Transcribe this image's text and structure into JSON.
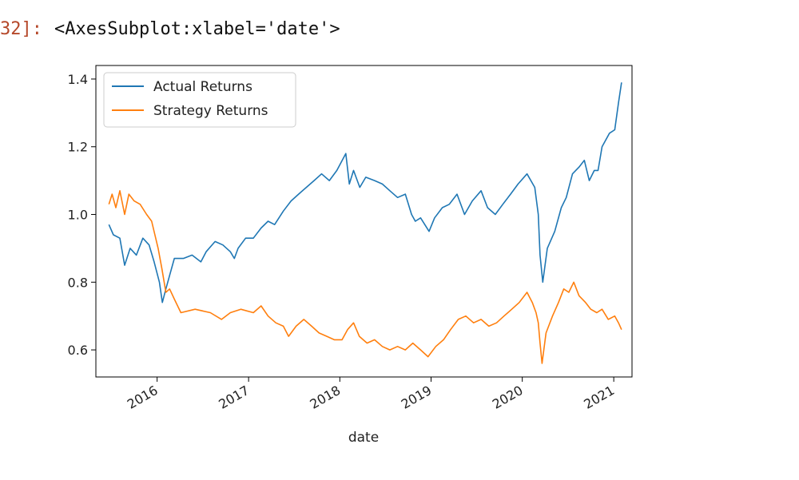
{
  "cell": {
    "prompt": "32]:",
    "output_repr": "<AxesSubplot:xlabel='date'>"
  },
  "chart_data": {
    "type": "line",
    "title": "",
    "xlabel": "date",
    "ylabel": "",
    "xlim": [
      "2015-05-01",
      "2021-03-15"
    ],
    "ylim": [
      0.52,
      1.44
    ],
    "x_ticks": [
      "2016-01-01",
      "2017-01-01",
      "2018-01-01",
      "2019-01-01",
      "2020-01-01",
      "2021-01-01"
    ],
    "x_tick_labels": [
      "2016",
      "2017",
      "2018",
      "2019",
      "2020",
      "2021"
    ],
    "y_ticks": [
      0.6,
      0.8,
      1.0,
      1.2,
      1.4
    ],
    "y_tick_labels": [
      "0.6",
      "0.8",
      "1.0",
      "1.2",
      "1.4"
    ],
    "grid": false,
    "legend_position": "upper-left",
    "series": [
      {
        "name": "Actual Returns",
        "color": "#1f77b4",
        "points": [
          [
            "2015-06-22",
            0.97
          ],
          [
            "2015-07-10",
            0.94
          ],
          [
            "2015-08-05",
            0.93
          ],
          [
            "2015-08-24",
            0.85
          ],
          [
            "2015-09-15",
            0.9
          ],
          [
            "2015-10-10",
            0.88
          ],
          [
            "2015-11-05",
            0.93
          ],
          [
            "2015-11-30",
            0.91
          ],
          [
            "2015-12-20",
            0.86
          ],
          [
            "2016-01-10",
            0.8
          ],
          [
            "2016-01-22",
            0.74
          ],
          [
            "2016-02-05",
            0.78
          ],
          [
            "2016-02-20",
            0.82
          ],
          [
            "2016-03-10",
            0.87
          ],
          [
            "2016-04-15",
            0.87
          ],
          [
            "2016-05-20",
            0.88
          ],
          [
            "2016-06-24",
            0.86
          ],
          [
            "2016-07-15",
            0.89
          ],
          [
            "2016-08-20",
            0.92
          ],
          [
            "2016-09-20",
            0.91
          ],
          [
            "2016-10-20",
            0.89
          ],
          [
            "2016-11-05",
            0.87
          ],
          [
            "2016-11-20",
            0.9
          ],
          [
            "2016-12-20",
            0.93
          ],
          [
            "2017-01-20",
            0.93
          ],
          [
            "2017-02-20",
            0.96
          ],
          [
            "2017-03-20",
            0.98
          ],
          [
            "2017-04-15",
            0.97
          ],
          [
            "2017-05-20",
            1.01
          ],
          [
            "2017-06-20",
            1.04
          ],
          [
            "2017-07-20",
            1.06
          ],
          [
            "2017-08-20",
            1.08
          ],
          [
            "2017-09-20",
            1.1
          ],
          [
            "2017-10-20",
            1.12
          ],
          [
            "2017-11-20",
            1.1
          ],
          [
            "2017-12-20",
            1.13
          ],
          [
            "2018-01-25",
            1.18
          ],
          [
            "2018-02-08",
            1.09
          ],
          [
            "2018-02-25",
            1.13
          ],
          [
            "2018-03-22",
            1.08
          ],
          [
            "2018-04-15",
            1.11
          ],
          [
            "2018-05-20",
            1.1
          ],
          [
            "2018-06-20",
            1.09
          ],
          [
            "2018-07-20",
            1.07
          ],
          [
            "2018-08-20",
            1.05
          ],
          [
            "2018-09-20",
            1.06
          ],
          [
            "2018-10-15",
            1.0
          ],
          [
            "2018-10-30",
            0.98
          ],
          [
            "2018-11-20",
            0.99
          ],
          [
            "2018-12-24",
            0.95
          ],
          [
            "2019-01-15",
            0.99
          ],
          [
            "2019-02-15",
            1.02
          ],
          [
            "2019-03-15",
            1.03
          ],
          [
            "2019-04-15",
            1.06
          ],
          [
            "2019-05-15",
            1.0
          ],
          [
            "2019-06-15",
            1.04
          ],
          [
            "2019-07-20",
            1.07
          ],
          [
            "2019-08-15",
            1.02
          ],
          [
            "2019-09-15",
            1.0
          ],
          [
            "2019-10-15",
            1.03
          ],
          [
            "2019-11-15",
            1.06
          ],
          [
            "2019-12-15",
            1.09
          ],
          [
            "2020-01-20",
            1.12
          ],
          [
            "2020-02-20",
            1.08
          ],
          [
            "2020-03-05",
            1.0
          ],
          [
            "2020-03-12",
            0.88
          ],
          [
            "2020-03-23",
            0.8
          ],
          [
            "2020-04-10",
            0.9
          ],
          [
            "2020-05-10",
            0.95
          ],
          [
            "2020-06-05",
            1.02
          ],
          [
            "2020-06-25",
            1.05
          ],
          [
            "2020-07-20",
            1.12
          ],
          [
            "2020-08-15",
            1.14
          ],
          [
            "2020-09-05",
            1.16
          ],
          [
            "2020-09-25",
            1.1
          ],
          [
            "2020-10-15",
            1.13
          ],
          [
            "2020-10-30",
            1.13
          ],
          [
            "2020-11-15",
            1.2
          ],
          [
            "2020-12-15",
            1.24
          ],
          [
            "2021-01-05",
            1.25
          ],
          [
            "2021-01-20",
            1.33
          ],
          [
            "2021-02-01",
            1.39
          ]
        ]
      },
      {
        "name": "Strategy Returns",
        "color": "#ff7f0e",
        "points": [
          [
            "2015-06-22",
            1.03
          ],
          [
            "2015-07-05",
            1.06
          ],
          [
            "2015-07-20",
            1.02
          ],
          [
            "2015-08-05",
            1.07
          ],
          [
            "2015-08-24",
            1.0
          ],
          [
            "2015-09-10",
            1.06
          ],
          [
            "2015-10-01",
            1.04
          ],
          [
            "2015-10-25",
            1.03
          ],
          [
            "2015-11-20",
            1.0
          ],
          [
            "2015-12-10",
            0.98
          ],
          [
            "2016-01-05",
            0.9
          ],
          [
            "2016-01-20",
            0.84
          ],
          [
            "2016-02-05",
            0.77
          ],
          [
            "2016-02-20",
            0.78
          ],
          [
            "2016-03-10",
            0.75
          ],
          [
            "2016-04-05",
            0.71
          ],
          [
            "2016-06-01",
            0.72
          ],
          [
            "2016-08-01",
            0.71
          ],
          [
            "2016-09-15",
            0.69
          ],
          [
            "2016-10-20",
            0.71
          ],
          [
            "2016-12-01",
            0.72
          ],
          [
            "2017-01-20",
            0.71
          ],
          [
            "2017-02-20",
            0.73
          ],
          [
            "2017-03-20",
            0.7
          ],
          [
            "2017-04-20",
            0.68
          ],
          [
            "2017-05-20",
            0.67
          ],
          [
            "2017-06-10",
            0.64
          ],
          [
            "2017-07-10",
            0.67
          ],
          [
            "2017-08-10",
            0.69
          ],
          [
            "2017-09-10",
            0.67
          ],
          [
            "2017-10-10",
            0.65
          ],
          [
            "2017-11-10",
            0.64
          ],
          [
            "2017-12-10",
            0.63
          ],
          [
            "2018-01-10",
            0.63
          ],
          [
            "2018-02-01",
            0.66
          ],
          [
            "2018-02-25",
            0.68
          ],
          [
            "2018-03-20",
            0.64
          ],
          [
            "2018-04-20",
            0.62
          ],
          [
            "2018-05-20",
            0.63
          ],
          [
            "2018-06-20",
            0.61
          ],
          [
            "2018-07-20",
            0.6
          ],
          [
            "2018-08-20",
            0.61
          ],
          [
            "2018-09-20",
            0.6
          ],
          [
            "2018-10-20",
            0.62
          ],
          [
            "2018-11-20",
            0.6
          ],
          [
            "2018-12-20",
            0.58
          ],
          [
            "2019-01-20",
            0.61
          ],
          [
            "2019-02-20",
            0.63
          ],
          [
            "2019-03-20",
            0.66
          ],
          [
            "2019-04-20",
            0.69
          ],
          [
            "2019-05-20",
            0.7
          ],
          [
            "2019-06-20",
            0.68
          ],
          [
            "2019-07-20",
            0.69
          ],
          [
            "2019-08-20",
            0.67
          ],
          [
            "2019-09-20",
            0.68
          ],
          [
            "2019-10-20",
            0.7
          ],
          [
            "2019-11-20",
            0.72
          ],
          [
            "2019-12-20",
            0.74
          ],
          [
            "2020-01-20",
            0.77
          ],
          [
            "2020-02-10",
            0.74
          ],
          [
            "2020-02-25",
            0.71
          ],
          [
            "2020-03-05",
            0.68
          ],
          [
            "2020-03-12",
            0.62
          ],
          [
            "2020-03-20",
            0.56
          ],
          [
            "2020-04-05",
            0.65
          ],
          [
            "2020-05-01",
            0.7
          ],
          [
            "2020-05-25",
            0.74
          ],
          [
            "2020-06-15",
            0.78
          ],
          [
            "2020-07-05",
            0.77
          ],
          [
            "2020-07-25",
            0.8
          ],
          [
            "2020-08-15",
            0.76
          ],
          [
            "2020-09-10",
            0.74
          ],
          [
            "2020-10-01",
            0.72
          ],
          [
            "2020-10-25",
            0.71
          ],
          [
            "2020-11-15",
            0.72
          ],
          [
            "2020-12-10",
            0.69
          ],
          [
            "2021-01-05",
            0.7
          ],
          [
            "2021-01-20",
            0.68
          ],
          [
            "2021-02-01",
            0.66
          ]
        ]
      }
    ]
  }
}
